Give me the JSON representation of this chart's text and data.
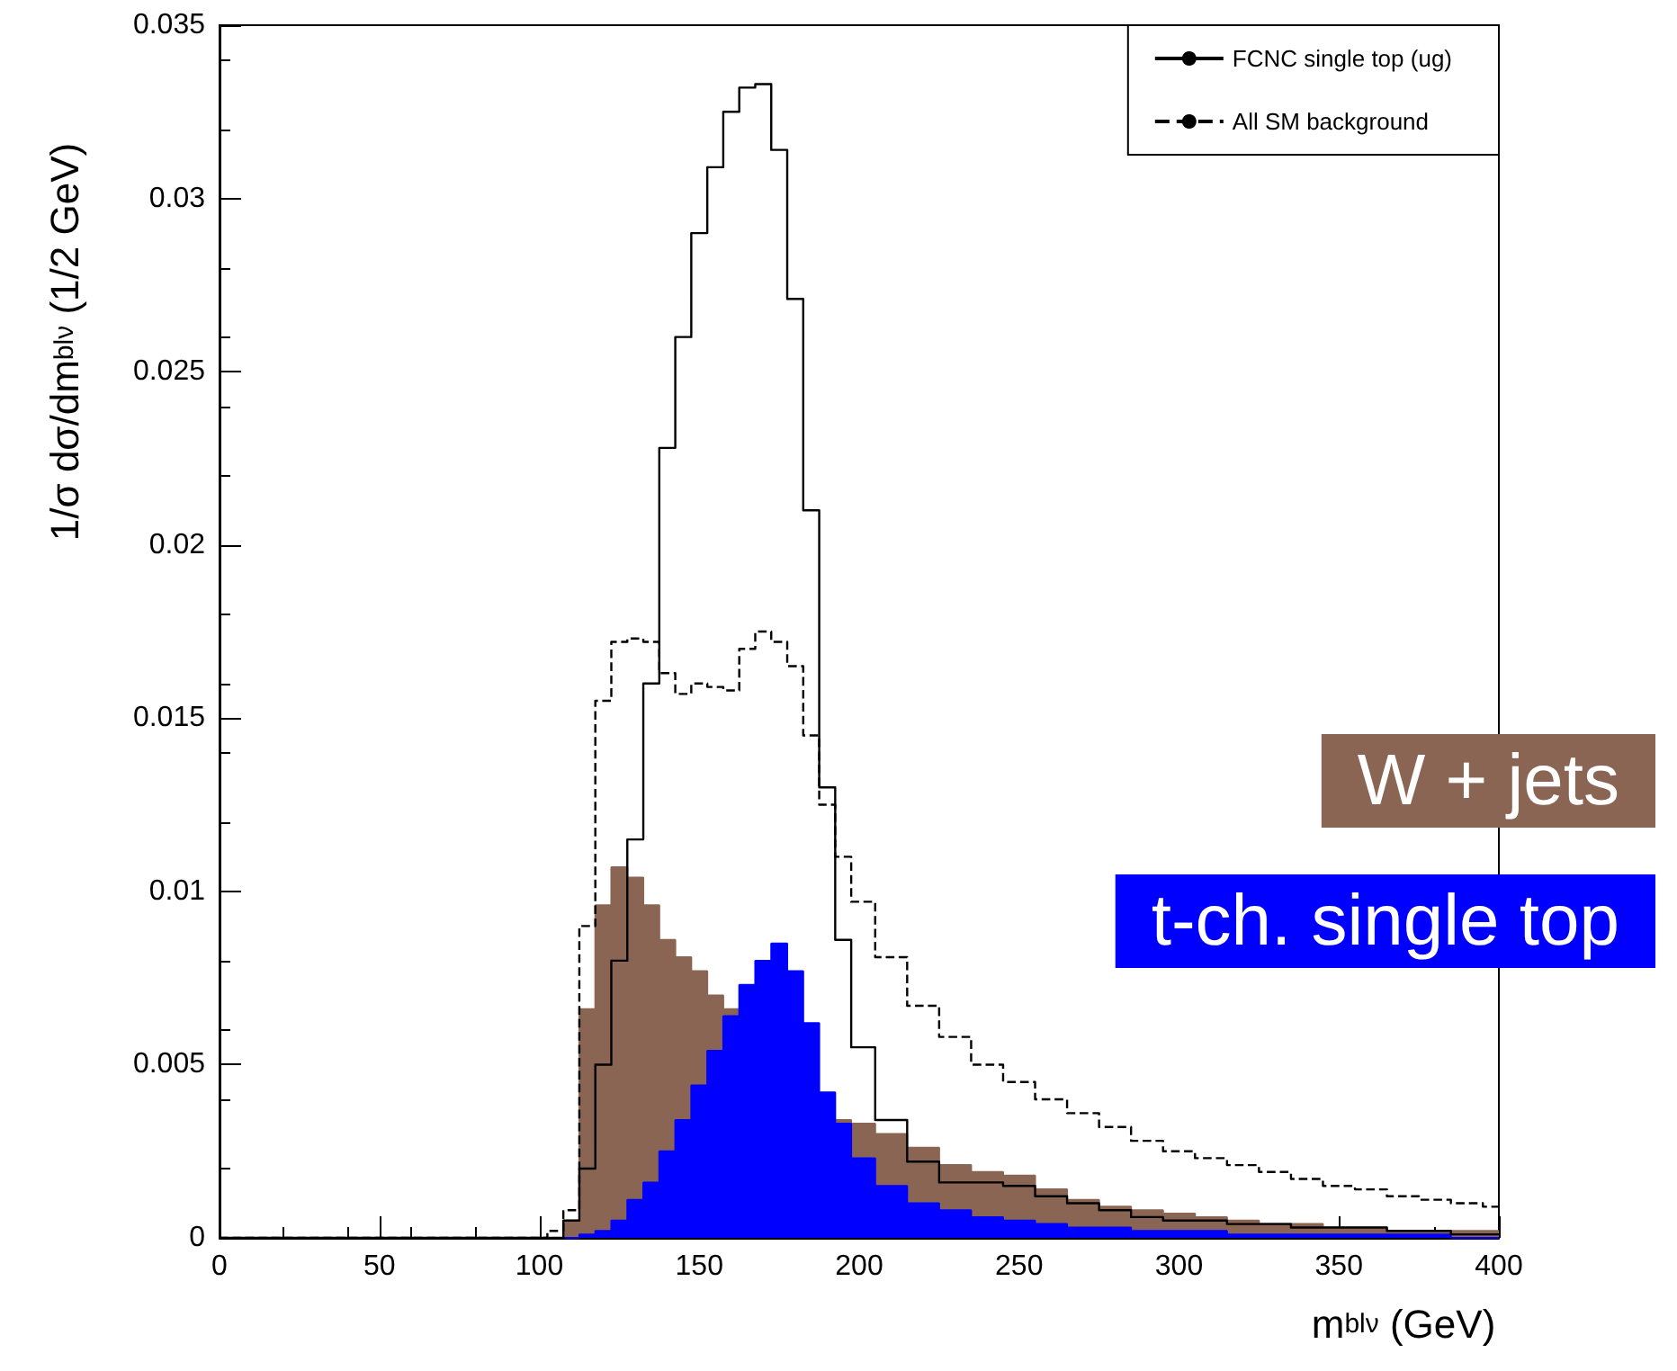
{
  "chart_data": {
    "type": "step",
    "xlabel": "m$_{blν}$ (GeV)",
    "ylabel": "1/σ dσ/dm$_{blν}$ (1/2 GeV)",
    "x": [
      0,
      100,
      105,
      110,
      115,
      120,
      125,
      130,
      135,
      140,
      145,
      150,
      155,
      160,
      165,
      170,
      175,
      180,
      185,
      190,
      195,
      200,
      210,
      220,
      230,
      240,
      250,
      260,
      270,
      280,
      290,
      300,
      310,
      320,
      330,
      340,
      350,
      360,
      370,
      380,
      390,
      400
    ],
    "series": [
      {
        "name": "W + jets",
        "type": "area",
        "color": "#8b6553",
        "values": [
          0,
          0,
          0,
          0.0005,
          0.0066,
          0.0096,
          0.0107,
          0.0104,
          0.0096,
          0.0086,
          0.0081,
          0.0077,
          0.007,
          0.0066,
          null,
          null,
          null,
          null,
          null,
          null,
          0.0034,
          0.0033,
          0.003,
          0.0026,
          0.0021,
          0.0019,
          0.0018,
          0.0014,
          0.0011,
          0.0009,
          0.0008,
          0.0007,
          0.0006,
          0.0005,
          0.0004,
          0.0004,
          0.0003,
          0.0003,
          0.0002,
          0.0002,
          0.0002,
          0.0002
        ]
      },
      {
        "name": "t-ch. single top",
        "type": "area",
        "color": "#0000ff",
        "values": [
          0,
          0,
          0,
          0,
          0.0001,
          0.0002,
          0.0005,
          0.0011,
          0.0016,
          0.0025,
          0.0034,
          0.0044,
          0.0054,
          0.0064,
          0.0073,
          0.008,
          0.0085,
          0.0077,
          0.0062,
          0.0042,
          0.0033,
          0.0023,
          0.0015,
          0.001,
          0.0008,
          0.0006,
          0.0005,
          0.0004,
          0.0003,
          0.0003,
          0.0002,
          0.0002,
          0.0002,
          0.0001,
          0.0001,
          0.0001,
          0.0001,
          0.0001,
          0.0001,
          0.0001,
          0,
          0
        ]
      },
      {
        "name": "FCNC single top (ug)",
        "type": "step",
        "color": "#000000",
        "line_style": "solid",
        "values": [
          0,
          0,
          0,
          0.0005,
          0.002,
          0.005,
          0.008,
          0.0115,
          0.016,
          0.0228,
          0.026,
          0.029,
          0.0309,
          0.0325,
          0.0332,
          0.0333,
          0.0314,
          0.0271,
          0.021,
          0.013,
          0.0086,
          0.0055,
          0.0034,
          0.0022,
          0.0016,
          0.0016,
          0.0015,
          0.0012,
          0.001,
          0.0008,
          0.0006,
          0.0005,
          0.0005,
          0.0004,
          0.0004,
          0.0003,
          0.0003,
          0.0003,
          0.0002,
          0.0002,
          0.0001,
          0.0001
        ]
      },
      {
        "name": "All SM background",
        "type": "step",
        "color": "#000000",
        "line_style": "dashed",
        "values": [
          0,
          0,
          0.0002,
          0.0008,
          0.009,
          0.0155,
          0.0172,
          0.0173,
          0.0172,
          0.0163,
          0.0157,
          0.016,
          0.0159,
          0.0158,
          0.017,
          0.0175,
          0.0172,
          0.0165,
          0.0145,
          0.0125,
          0.011,
          0.0097,
          0.0081,
          0.0067,
          0.0058,
          0.005,
          0.0045,
          0.004,
          0.0036,
          0.0032,
          0.0028,
          0.0025,
          0.0023,
          0.0021,
          0.0019,
          0.0017,
          0.0015,
          0.0014,
          0.0012,
          0.0011,
          0.001,
          0.0009
        ]
      }
    ],
    "xlim": [
      0,
      400
    ],
    "xticks": [
      0,
      50,
      100,
      150,
      200,
      250,
      300,
      350,
      400
    ],
    "ylim": [
      0,
      0.035
    ],
    "yticks": [
      0,
      0.005,
      0.01,
      0.015,
      0.02,
      0.025,
      0.03,
      0.035
    ],
    "marker": "none",
    "grid": false,
    "legend": "top right"
  }
}
